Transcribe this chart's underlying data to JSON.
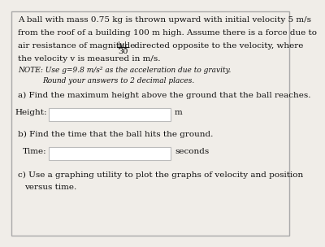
{
  "bg_color": "#f0ede8",
  "border_color": "#aaaaaa",
  "text_color": "#111111",
  "line1": "A ball with mass 0.75 kg is thrown upward with initial velocity 5 m/s",
  "line2": "from the roof of a building 100 m high. Assume there is a force due to",
  "air_prefix": "air resistance of magnitude ",
  "frac_num": "|v|",
  "frac_den": "30",
  "air_suffix": " directed opposite to the velocity, where",
  "line4": "the velocity v is measured in m/s.",
  "note1": "NOTE: Use g=9.8 m/s² as the acceleration due to gravity.",
  "note2": "Round your answers to 2 decimal places.",
  "part_a": "a) Find the maximum height above the ground that the ball reaches.",
  "height_label": "Height:",
  "height_unit": "m",
  "part_b": "b) Find the time that the ball hits the ground.",
  "time_label": "Time:",
  "time_unit": "seconds",
  "part_c1": "c) Use a graphing utility to plot the graphs of velocity and position",
  "part_c2": "    versus time.",
  "fs_body": 7.5,
  "fs_note": 6.5,
  "field_color": "#ffffff",
  "field_border": "#bbbbbb"
}
